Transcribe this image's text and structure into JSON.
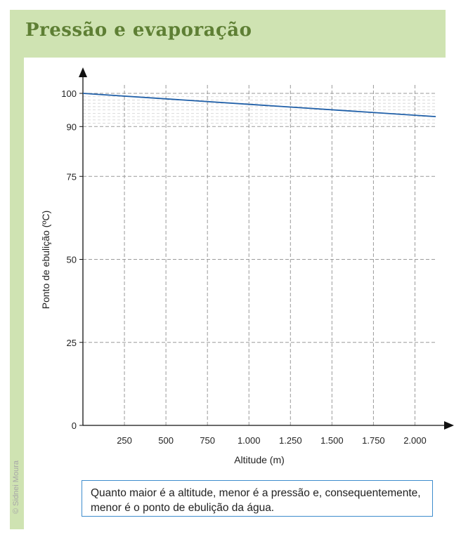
{
  "header": {
    "title": "Pressão e evaporação"
  },
  "credit": "© Sidnei Moura",
  "caption": "Quanto maior é a altitude, menor é a pressão e, consequentemente, menor é o ponto de ebulição da água.",
  "colors": {
    "line": "#1f5fa8",
    "panel_green": "#cfe3b2",
    "title_green": "#5e7f34",
    "caption_border": "#3e8ccd"
  },
  "chart_data": {
    "type": "line",
    "xlabel": "Altitude (m)",
    "ylabel": "Ponto de ebulição (ºC)",
    "xlim": [
      0,
      2125
    ],
    "ylim": [
      0,
      100
    ],
    "x_ticks": [
      250,
      500,
      750,
      1000,
      1250,
      1500,
      1750,
      2000
    ],
    "x_tick_labels": [
      "250",
      "500",
      "750",
      "1.000",
      "1.250",
      "1.500",
      "1.750",
      "2.000"
    ],
    "y_ticks": [
      0,
      25,
      50,
      75,
      90,
      100
    ],
    "y_tick_labels": [
      "0",
      "25",
      "50",
      "75",
      "90",
      "100"
    ],
    "grid": true,
    "series": [
      {
        "x": [
          0,
          2125
        ],
        "y": [
          100,
          93
        ]
      }
    ]
  }
}
